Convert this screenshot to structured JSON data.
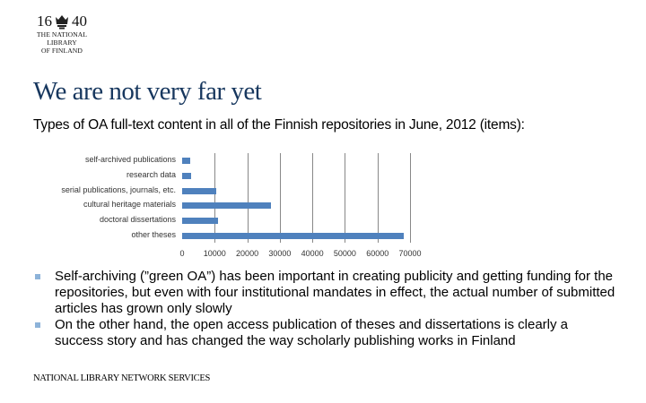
{
  "logo": {
    "year_left": "16",
    "year_right": "40",
    "lines": [
      "THE NATIONAL",
      "LIBRARY",
      "OF FINLAND"
    ]
  },
  "title": "We are not very far yet",
  "subtitle": "Types of OA full-text content in all of the Finnish repositories in June, 2012 (items):",
  "chart_data": {
    "type": "bar",
    "orientation": "horizontal",
    "title": "Types of OA full-text content in all of the Finnish repositories in June, 2012 (items)",
    "categories": [
      "self-archived publications",
      "research data",
      "serial publications, journals, etc.",
      "cultural heritage materials",
      "doctoral dissertations",
      "other theses"
    ],
    "values": [
      2500,
      2800,
      10500,
      27400,
      11100,
      68000
    ],
    "xlabel": "",
    "ylabel": "",
    "xlim": [
      0,
      70000
    ],
    "xticks": [
      "0",
      "10000",
      "20000",
      "30000",
      "40000",
      "50000",
      "60000",
      "70000"
    ],
    "grid": "vertical major gridlines",
    "legend": "none",
    "bar_color": "#4f81bd"
  },
  "bullets": [
    "Self-archiving (”green OA”) has been important in creating publicity and getting funding for the repositories, but even with four institutional mandates in effect, the actual number of submitted articles has grown only slowly",
    "On the other hand, the open access publication of theses and dissertations is clearly a success story and has changed the way scholarly publishing works in Finland"
  ],
  "footer": "NATIONAL LIBRARY NETWORK SERVICES",
  "colors": {
    "title": "#17375e",
    "bar": "#4f81bd",
    "bullet": "#8db3d9"
  }
}
